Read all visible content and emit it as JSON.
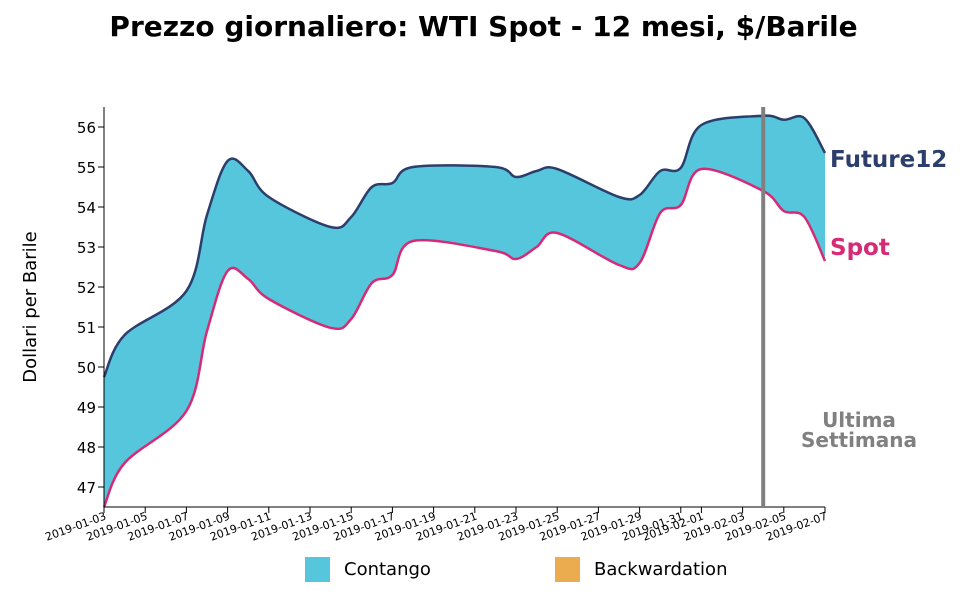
{
  "chart_data": {
    "type": "area",
    "title": "Prezzo giornaliero: WTI Spot - 12 mesi, $/Barile",
    "ylabel": "Dollari per Barile",
    "xlabel": "",
    "ylim": [
      46.5,
      56.5
    ],
    "yticks": [
      47,
      48,
      49,
      50,
      51,
      52,
      53,
      54,
      55,
      56
    ],
    "x": [
      "2019-01-03",
      "2019-01-04",
      "2019-01-07",
      "2019-01-08",
      "2019-01-09",
      "2019-01-10",
      "2019-01-11",
      "2019-01-14",
      "2019-01-15",
      "2019-01-16",
      "2019-01-17",
      "2019-01-18",
      "2019-01-22",
      "2019-01-23",
      "2019-01-24",
      "2019-01-25",
      "2019-01-28",
      "2019-01-29",
      "2019-01-30",
      "2019-01-31",
      "2019-02-01",
      "2019-02-04",
      "2019-02-05",
      "2019-02-06",
      "2019-02-07"
    ],
    "xticks": [
      "2019-01-03",
      "2019-01-05",
      "2019-01-07",
      "2019-01-09",
      "2019-01-11",
      "2019-01-13",
      "2019-01-15",
      "2019-01-17",
      "2019-01-19",
      "2019-01-21",
      "2019-01-23",
      "2019-01-25",
      "2019-01-27",
      "2019-01-29",
      "2019-01-31",
      "2019-02-01",
      "2019-02-03",
      "2019-02-05",
      "2019-02-07"
    ],
    "series": [
      {
        "name": "Future12",
        "color": "#2c3e6b",
        "values": [
          49.75,
          50.8,
          51.9,
          53.8,
          55.15,
          54.9,
          54.25,
          53.5,
          53.75,
          54.5,
          54.6,
          55.0,
          55.0,
          54.75,
          54.9,
          54.95,
          54.25,
          54.3,
          54.9,
          54.98,
          56.05,
          56.28,
          56.18,
          56.22,
          55.35
        ]
      },
      {
        "name": "Spot",
        "color": "#d62a77",
        "values": [
          46.5,
          47.6,
          48.9,
          50.9,
          52.4,
          52.2,
          51.7,
          50.98,
          51.2,
          52.1,
          52.3,
          53.15,
          52.9,
          52.7,
          53.0,
          53.35,
          52.55,
          52.6,
          53.85,
          54.05,
          54.95,
          54.4,
          53.9,
          53.75,
          52.65
        ]
      }
    ],
    "fill_colors": {
      "contango": "#56c6dc",
      "backwardation": "#ebac4f"
    },
    "legend": {
      "placement": "bottom",
      "entries": [
        "Contango",
        "Backwardation"
      ]
    },
    "annotation": {
      "label_line1": "Ultima",
      "label_line2": "Settimana",
      "x": "2019-02-04",
      "color": "#808080"
    },
    "grid": false
  }
}
